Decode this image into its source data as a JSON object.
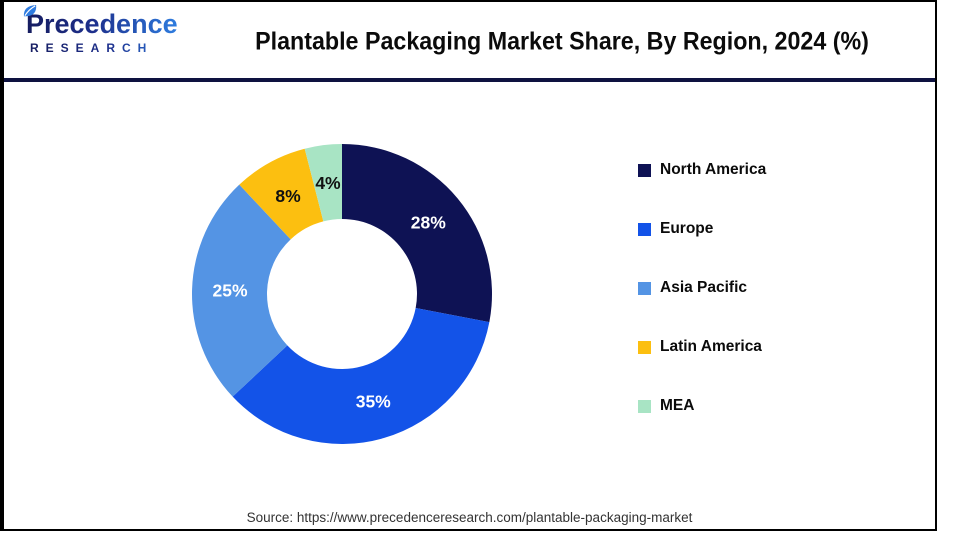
{
  "header": {
    "logo_line1": "Precedence",
    "logo_line2": "RESEARCH",
    "title": "Plantable Packaging Market Share, By Region, 2024 (%)"
  },
  "chart_data": {
    "type": "pie",
    "subtype": "donut",
    "title": "Plantable Packaging Market Share, By Region, 2024 (%)",
    "start_angle_deg": 0,
    "direction": "clockwise",
    "categories": [
      "North America",
      "Europe",
      "Asia Pacific",
      "Latin America",
      "MEA"
    ],
    "values": [
      28,
      35,
      25,
      8,
      4
    ],
    "unit": "%",
    "labels": [
      "28%",
      "35%",
      "25%",
      "8%",
      "4%"
    ],
    "colors": [
      "#0e1254",
      "#1353e8",
      "#5494e4",
      "#fcbf10",
      "#a8e4c4"
    ],
    "label_colors": [
      "#ffffff",
      "#ffffff",
      "#ffffff",
      "#111111",
      "#111111"
    ],
    "legend_position": "right"
  },
  "footer": {
    "source": "Source: https://www.precedenceresearch.com/plantable-packaging-market"
  }
}
